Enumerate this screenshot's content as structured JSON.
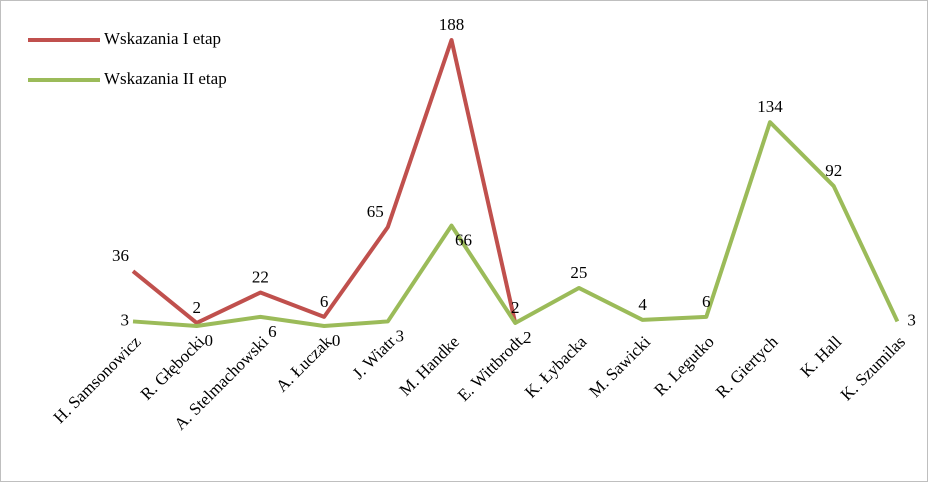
{
  "chart_data": {
    "type": "line",
    "categories": [
      "H. Samsonowicz",
      "R. Głębocki",
      "A. Stelmachowski",
      "A. Łuczak",
      "J. Wiatr",
      "M. Handke",
      "E. Wittbrodt",
      "K. Łybacka",
      "M. Sawicki",
      "R. Legutko",
      "R. Giertych",
      "K. Hall",
      "K. Szumilas"
    ],
    "series": [
      {
        "name": "Wskazania I etap",
        "color": "#c0504d",
        "values": [
          36,
          2,
          22,
          6,
          65,
          188,
          2,
          null,
          null,
          null,
          null,
          null,
          null
        ]
      },
      {
        "name": "Wskazania II etap",
        "color": "#9bbb59",
        "values": [
          3,
          0,
          6,
          0,
          3,
          66,
          2,
          25,
          4,
          6,
          134,
          92,
          3
        ]
      }
    ],
    "legend": "top-left"
  }
}
